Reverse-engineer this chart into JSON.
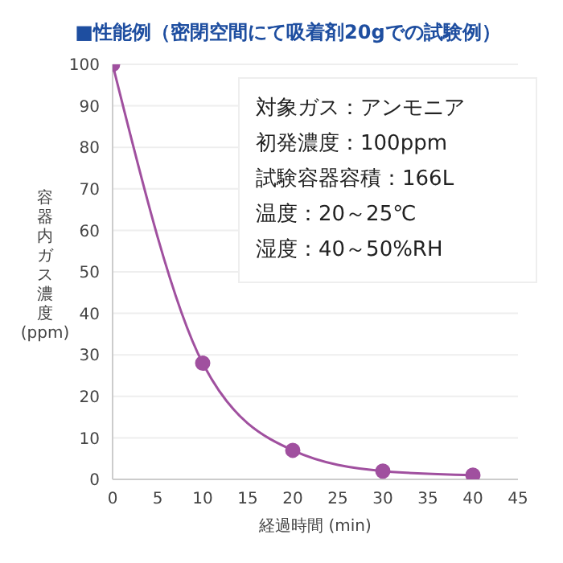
{
  "chart_data": {
    "type": "line",
    "title": "■性能例（密閉空間にて吸着剤20gでの試験例）",
    "xlabel": "経過時間 (min)",
    "ylabel": "容器内ガス濃度(ppm)",
    "x": [
      0,
      10,
      20,
      30,
      40
    ],
    "series": [
      {
        "color": "#a0509f",
        "values": [
          100,
          28,
          7,
          2,
          1
        ]
      }
    ],
    "xlim": [
      0,
      45
    ],
    "xticks": [
      0,
      5,
      10,
      15,
      20,
      25,
      30,
      35,
      40,
      45
    ],
    "ylim": [
      0,
      100
    ],
    "yticks": [
      0,
      10,
      20,
      30,
      40,
      50,
      60,
      70,
      80,
      90,
      100
    ],
    "grid": "y",
    "marker": "circle",
    "line_style": "solid",
    "annotations": [
      "対象ガス：アンモニア",
      "初発濃度：100ppm",
      "試験容器容積：166L",
      "温度：20～25℃",
      "湿度：40～50%RH"
    ]
  }
}
